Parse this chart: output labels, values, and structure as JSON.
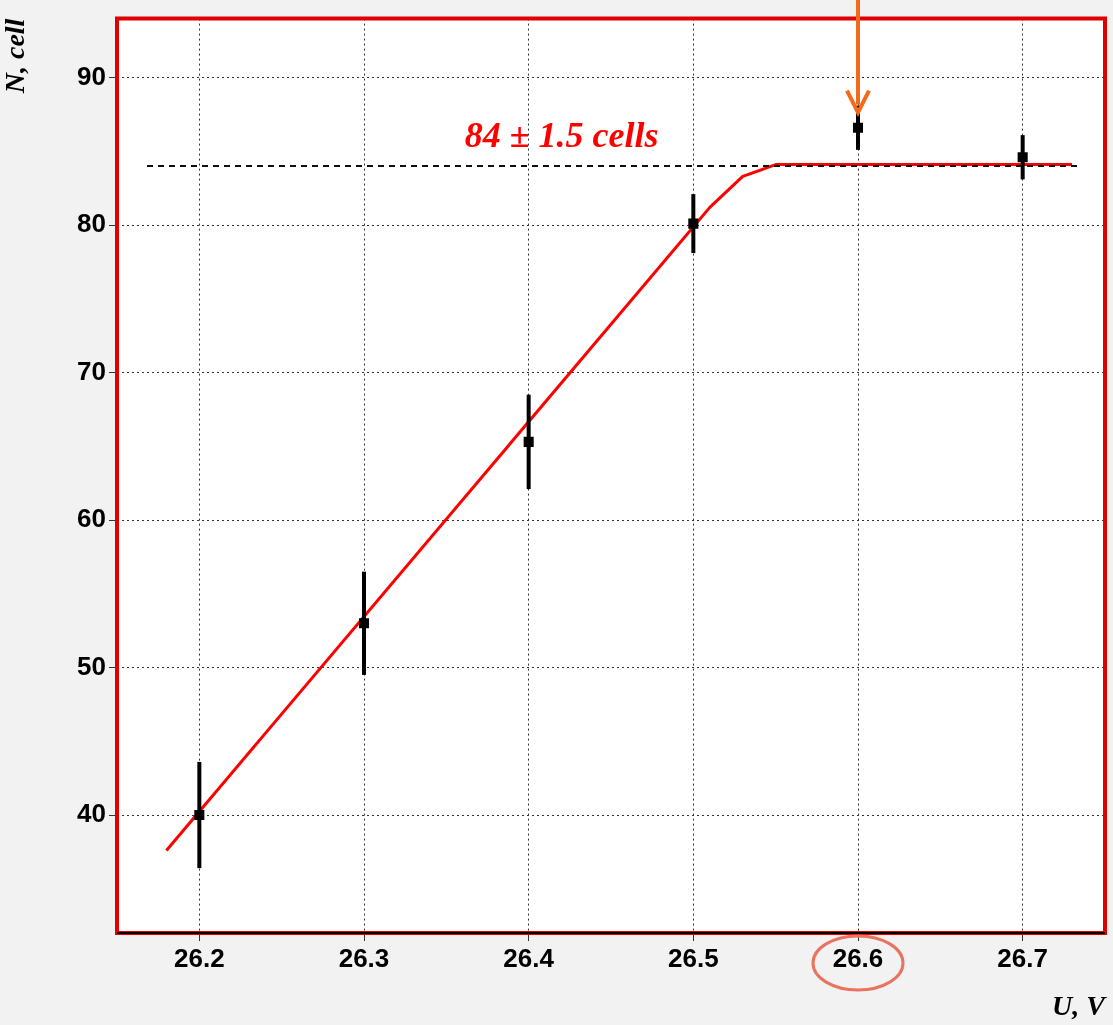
{
  "chart_data": {
    "type": "scatter",
    "xlabel": "U, V",
    "ylabel": "N, cell",
    "xlim": [
      26.15,
      26.75
    ],
    "xticks": [
      26.2,
      26.3,
      26.4,
      26.5,
      26.6,
      26.7
    ],
    "ylim": [
      32,
      94
    ],
    "yticks": [
      40,
      50,
      60,
      70,
      80,
      90
    ],
    "grid": true,
    "legend": false,
    "series": [
      {
        "color": "#000000",
        "marker": "square",
        "x": [
          26.2,
          26.3,
          26.4,
          26.5,
          26.6,
          26.7
        ],
        "values": [
          40,
          53,
          65.3,
          80.1,
          86.6,
          84.6
        ],
        "errors": [
          3.6,
          3.5,
          3.2,
          2,
          1.5,
          1.5
        ]
      },
      {
        "type": "line",
        "color": "#ff0000",
        "marker": "none",
        "x": [
          26.18,
          26.51,
          26.53,
          26.55,
          26.73
        ],
        "values": [
          37.6,
          81.2,
          83.3,
          84.1,
          84.1
        ]
      }
    ],
    "ref_lines": [
      {
        "axis": "y",
        "value": 84,
        "label": "84 ± 1.5 cells",
        "color": "#000000",
        "line_style": "dashed"
      }
    ]
  }
}
